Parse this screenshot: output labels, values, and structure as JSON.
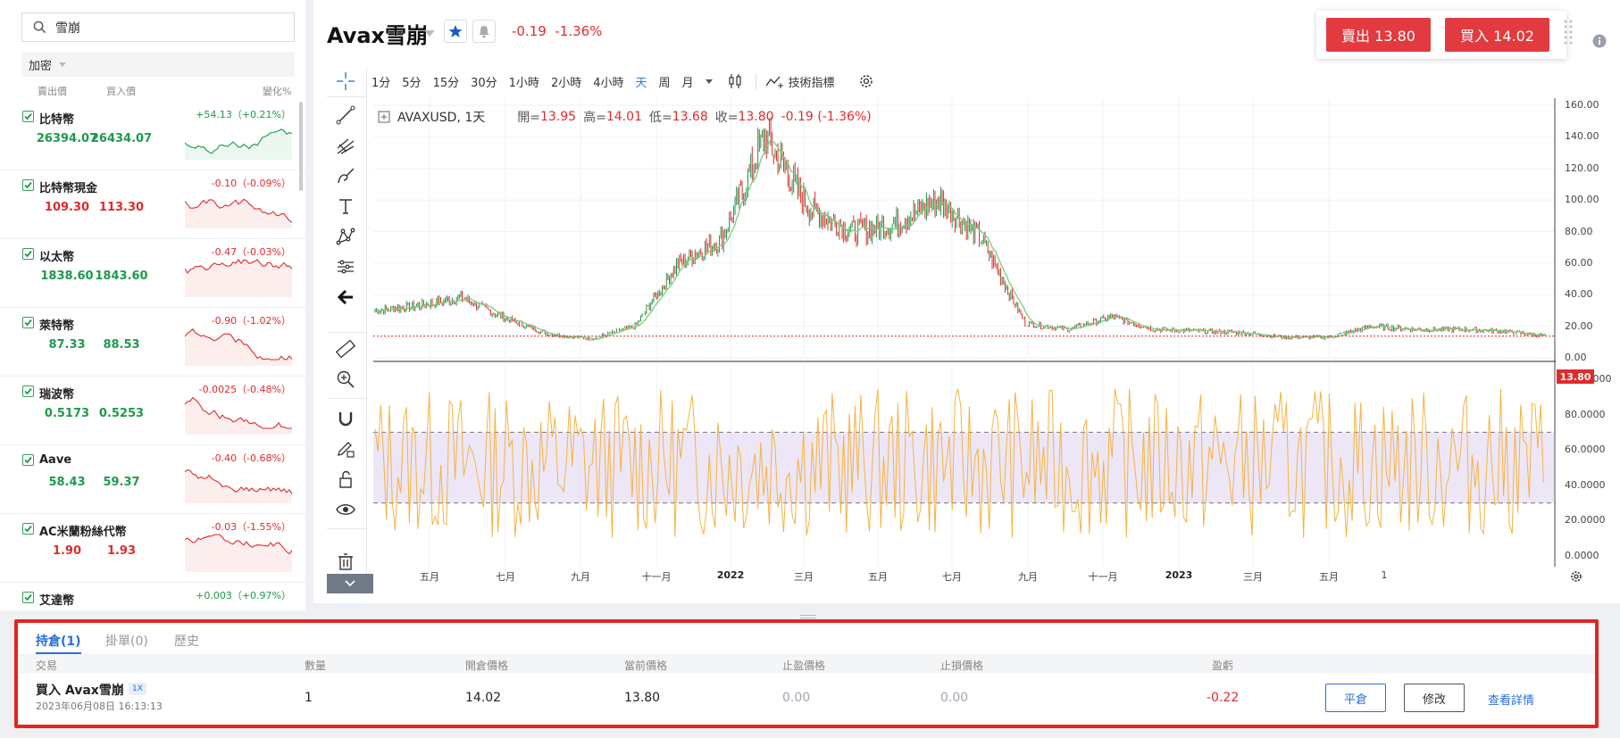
{
  "search": {
    "value": "雪崩"
  },
  "category": {
    "label": "加密"
  },
  "watchlist_header": {
    "bid": "賣出價",
    "ask": "買入價",
    "change": "變化%"
  },
  "watchlist": [
    {
      "name": "比特幣",
      "bid": "26394.07",
      "ask": "26434.07",
      "change": "+54.13（+0.21%）",
      "dir": "up"
    },
    {
      "name": "比特幣現金",
      "bid": "109.30",
      "ask": "113.30",
      "change": "-0.10（-0.09%）",
      "dir": "down"
    },
    {
      "name": "以太幣",
      "bid": "1838.60",
      "ask": "1843.60",
      "change": "-0.47（-0.03%）",
      "dir": "up"
    },
    {
      "name": "萊特幣",
      "bid": "87.33",
      "ask": "88.53",
      "change": "-0.90（-1.02%）",
      "dir": "up"
    },
    {
      "name": "瑞波幣",
      "bid": "0.5173",
      "ask": "0.5253",
      "change": "-0.0025（-0.48%）",
      "dir": "up"
    },
    {
      "name": "Aave",
      "bid": "58.43",
      "ask": "59.37",
      "change": "-0.40（-0.68%）",
      "dir": "up"
    },
    {
      "name": "AC米蘭粉絲代幣",
      "bid": "1.90",
      "ask": "1.93",
      "change": "-0.03（-1.55%）",
      "dir": "down"
    },
    {
      "name": "艾達幣",
      "bid": "",
      "ask": "",
      "change": "+0.003（+0.97%）",
      "dir": "up"
    }
  ],
  "symbol": {
    "title": "Avax雪崩",
    "change": "-0.19",
    "change_pct": "-1.36%"
  },
  "trade": {
    "sell_label": "賣出 13.80",
    "buy_label": "買入 14.02"
  },
  "timeframes": [
    "1分",
    "5分",
    "15分",
    "30分",
    "1小時",
    "2小時",
    "4小時",
    "天",
    "周",
    "月"
  ],
  "active_timeframe": "天",
  "indicators_label": "技術指標",
  "ohlc": {
    "symbol_label": "AVAXUSD, 1天",
    "open_label": "開=",
    "open": "13.95",
    "high_label": "高=",
    "high": "14.01",
    "low_label": "低=",
    "low": "13.68",
    "close_label": "收=",
    "close": "13.80",
    "change": "-0.19 (-1.36%)"
  },
  "price_axis_labels": [
    "160.00",
    "140.00",
    "120.00",
    "100.00",
    "80.00",
    "60.00",
    "40.00",
    "20.00",
    "0.00"
  ],
  "osc_axis_labels": [
    "100.0000",
    "80.0000",
    "60.0000",
    "40.0000",
    "20.0000",
    "0.0000"
  ],
  "last_price_tag": "13.80",
  "time_axis_labels": [
    "五月",
    "七月",
    "九月",
    "十一月",
    "2022",
    "三月",
    "五月",
    "七月",
    "九月",
    "十一月",
    "2023",
    "三月",
    "五月",
    "1"
  ],
  "colors": {
    "up": "#1e9a4a",
    "down": "#e02b2b",
    "accent": "#2a6fd6",
    "trade": "#e33a3f",
    "ma": "#7fc97f",
    "osc": "#f5b342"
  },
  "chart_data": [
    {
      "type": "line",
      "title": "",
      "x": [
        "2021-03",
        "2021-04",
        "2021-05",
        "2021-06",
        "2021-07",
        "2021-08",
        "2021-09",
        "2021-10",
        "2021-11",
        "2021-12",
        "2022-01",
        "2022-02",
        "2022-03",
        "2022-04",
        "2022-05",
        "2022-06",
        "2022-07",
        "2022-08",
        "2022-09",
        "2022-10",
        "2022-11",
        "2022-12",
        "2023-01",
        "2023-02",
        "2023-03",
        "2023-04",
        "2023-05",
        "2023-06"
      ],
      "series": [
        {
          "name": "AVAXUSD",
          "values": [
            30,
            33,
            38,
            25,
            15,
            12,
            20,
            60,
            75,
            140,
            95,
            80,
            85,
            100,
            75,
            22,
            18,
            26,
            18,
            17,
            16,
            13,
            13,
            20,
            18,
            18,
            17,
            13.8
          ]
        }
      ],
      "ylim": [
        0,
        160
      ],
      "last_value": 13.8
    },
    {
      "type": "line",
      "title": "",
      "ylim": [
        0,
        100
      ],
      "bands": [
        30,
        70
      ]
    }
  ],
  "positions_panel": {
    "tabs": [
      "持倉(1)",
      "掛單(0)",
      "歷史"
    ],
    "columns": [
      "交易",
      "數量",
      "開倉價格",
      "當前價格",
      "止盈價格",
      "止損價格",
      "盈虧"
    ],
    "row": {
      "name": "買入 Avax雪崩",
      "leverage": "1X",
      "time": "2023年06月08日 16:13:13",
      "quantity": "1",
      "open_price": "14.02",
      "current_price": "13.80",
      "take_profit": "0.00",
      "stop_loss": "0.00",
      "pnl": "-0.22"
    },
    "close_label": "平倉",
    "modify_label": "修改",
    "details_label": "查看詳情"
  }
}
